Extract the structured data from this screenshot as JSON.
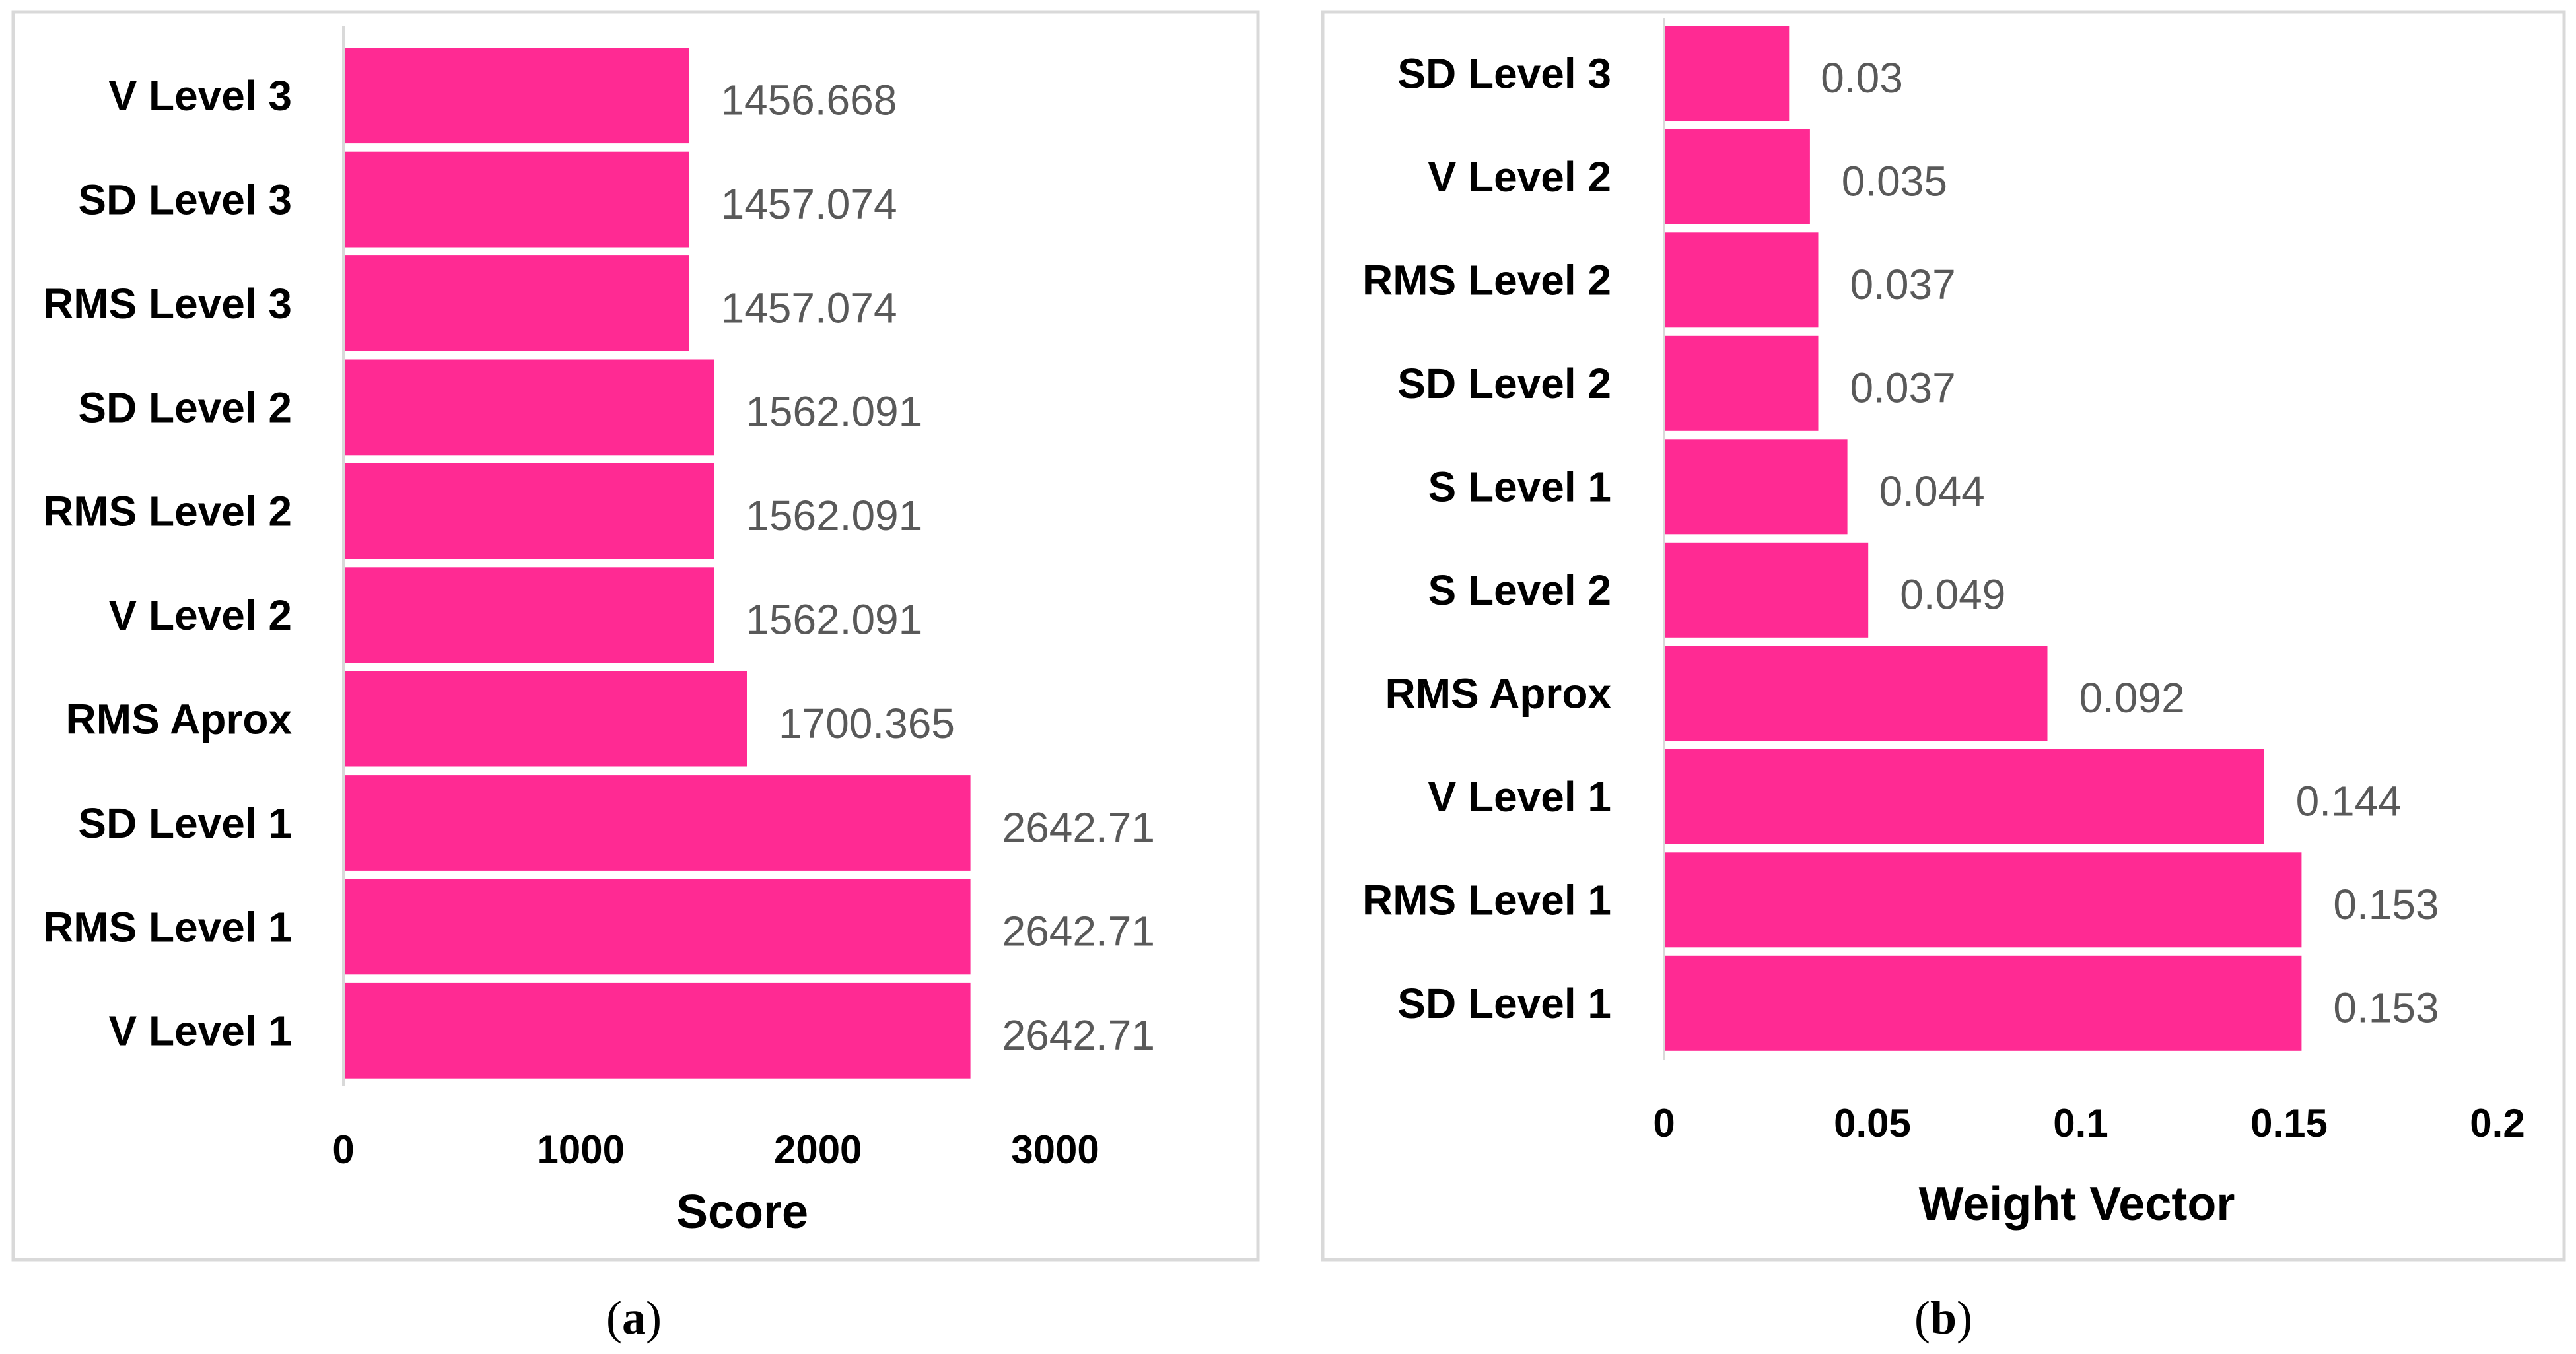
{
  "chart_data": [
    {
      "type": "bar",
      "orientation": "horizontal",
      "caption": "(a)",
      "caption_letter": "a",
      "categories": [
        "V Level 3",
        "SD Level 3",
        "RMS Level 3",
        "SD Level 2",
        "RMS Level 2",
        "V Level 2",
        "RMS Aprox",
        "SD Level 1",
        "RMS Level 1",
        "V Level 1"
      ],
      "values": [
        1456.668,
        1457.074,
        1457.074,
        1562.091,
        1562.091,
        1562.091,
        1700.365,
        2642.71,
        2642.71,
        2642.71
      ],
      "value_labels": [
        "1456.668",
        "1457.074",
        "1457.074",
        "1562.091",
        "1562.091",
        "1562.091",
        "1700.365",
        "2642.71",
        "2642.71",
        "2642.71"
      ],
      "xlabel": "Score",
      "ylabel": "",
      "xlim": [
        0,
        3000
      ],
      "ticks": [
        0,
        1000,
        2000,
        3000
      ],
      "tick_labels": [
        "0",
        "1000",
        "2000",
        "3000"
      ],
      "grid": false,
      "bar_color": "#FF2A93"
    },
    {
      "type": "bar",
      "orientation": "horizontal",
      "caption": "(b)",
      "caption_letter": "b",
      "categories": [
        "SD Level 3",
        "V Level 2",
        "RMS Level 2",
        "SD Level 2",
        "S Level 1",
        "S Level 2",
        "RMS Aprox",
        "V Level 1",
        "RMS Level 1",
        "SD Level 1"
      ],
      "values": [
        0.03,
        0.035,
        0.037,
        0.037,
        0.044,
        0.049,
        0.092,
        0.144,
        0.153,
        0.153
      ],
      "value_labels": [
        "0.03",
        "0.035",
        "0.037",
        "0.037",
        "0.044",
        "0.049",
        "0.092",
        "0.144",
        "0.153",
        "0.153"
      ],
      "xlabel": "Weight Vector",
      "ylabel": "",
      "xlim": [
        0,
        0.2
      ],
      "ticks": [
        0,
        0.05,
        0.1,
        0.15,
        0.2
      ],
      "tick_labels": [
        "0",
        "0.05",
        "0.1",
        "0.15",
        "0.2"
      ],
      "grid": false,
      "bar_color": "#FF2A93"
    }
  ],
  "colors": {
    "bar": "#FF2A93",
    "panel_border": "#D9D9D9",
    "axis_line": "#D9D9D9",
    "data_label": "#595959",
    "text": "#000000"
  }
}
